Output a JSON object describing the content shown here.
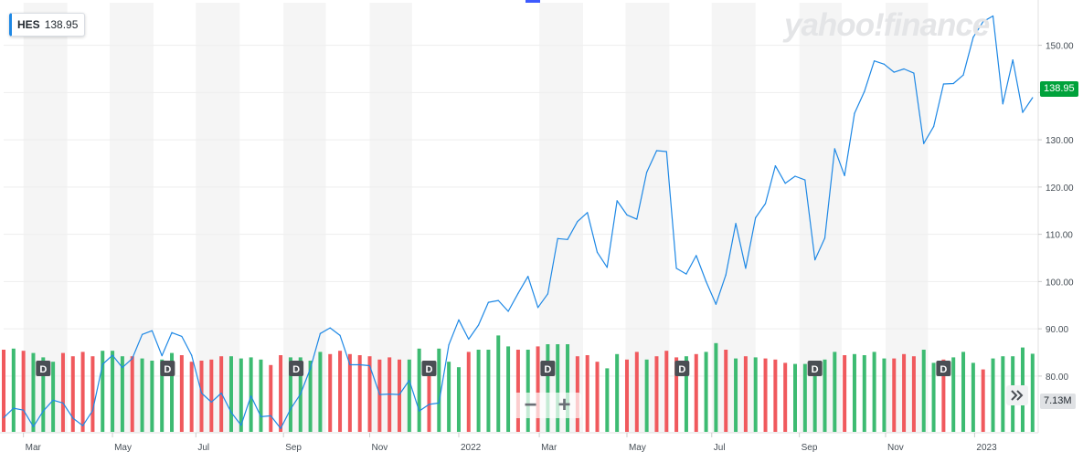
{
  "ticker": {
    "symbol": "HES",
    "price": "138.95"
  },
  "watermark": "yahoo!finance",
  "price_label": "138.95",
  "volume_label": "7.13M",
  "dividend_marker": "D",
  "colors": {
    "line": "#1e88e5",
    "volume_up": "#3dbb72",
    "volume_down": "#f0595d",
    "price_tag": "#00a23b",
    "band": "#f5f5f5",
    "grid": "#eeeeee",
    "dividend_marker": "#4a4e54"
  },
  "icons": {
    "zoom_out": "minus-icon",
    "zoom_in": "plus-icon",
    "scroll": "double-chevron-right-icon"
  },
  "chart_data": {
    "type": "line",
    "title": "",
    "xlabel": "",
    "ylabel": "",
    "ylim": [
      68,
      159
    ],
    "yticks": [
      80,
      90,
      100,
      110,
      120,
      130,
      140,
      150
    ],
    "ytick_labels": [
      "80.00",
      "90.00",
      "100.00",
      "110.00",
      "120.00",
      "130.00",
      "140.00",
      "150.00"
    ],
    "x_range": [
      "2021-02-15",
      "2023-02-17"
    ],
    "x_tick_labels": [
      {
        "label": "Mar",
        "date": "2021-03-01"
      },
      {
        "label": "May",
        "date": "2021-05-03"
      },
      {
        "label": "Jul",
        "date": "2021-07-01"
      },
      {
        "label": "Sep",
        "date": "2021-09-01"
      },
      {
        "label": "Nov",
        "date": "2021-11-01"
      },
      {
        "label": "2022",
        "date": "2022-01-03"
      },
      {
        "label": "Mar",
        "date": "2022-03-01"
      },
      {
        "label": "May",
        "date": "2022-05-02"
      },
      {
        "label": "Jul",
        "date": "2022-07-01"
      },
      {
        "label": "Sep",
        "date": "2022-09-01"
      },
      {
        "label": "Nov",
        "date": "2022-11-01"
      },
      {
        "label": "2023",
        "date": "2023-01-03"
      }
    ],
    "shaded_months": [
      {
        "start": "2021-03-01",
        "end": "2021-04-01"
      },
      {
        "start": "2021-05-01",
        "end": "2021-06-01"
      },
      {
        "start": "2021-07-01",
        "end": "2021-08-01"
      },
      {
        "start": "2021-09-01",
        "end": "2021-10-01"
      },
      {
        "start": "2021-11-01",
        "end": "2021-12-01"
      },
      {
        "start": "2022-03-01",
        "end": "2022-04-01"
      },
      {
        "start": "2022-05-01",
        "end": "2022-06-01"
      },
      {
        "start": "2022-07-01",
        "end": "2022-08-01"
      },
      {
        "start": "2022-09-01",
        "end": "2022-10-01"
      },
      {
        "start": "2022-11-01",
        "end": "2022-12-01"
      }
    ],
    "series": [
      {
        "x": [
          "2021-02-15",
          "2021-02-22",
          "2021-03-01",
          "2021-03-08",
          "2021-03-15",
          "2021-03-22",
          "2021-03-29",
          "2021-04-05",
          "2021-04-12",
          "2021-04-19",
          "2021-04-26",
          "2021-05-03",
          "2021-05-10",
          "2021-05-17",
          "2021-05-24",
          "2021-05-31",
          "2021-06-07",
          "2021-06-14",
          "2021-06-21",
          "2021-06-28",
          "2021-07-05",
          "2021-07-12",
          "2021-07-19",
          "2021-07-26",
          "2021-08-02",
          "2021-08-09",
          "2021-08-16",
          "2021-08-23",
          "2021-08-30",
          "2021-09-06",
          "2021-09-13",
          "2021-09-20",
          "2021-09-27",
          "2021-10-04",
          "2021-10-11",
          "2021-10-18",
          "2021-10-25",
          "2021-11-01",
          "2021-11-08",
          "2021-11-15",
          "2021-11-22",
          "2021-11-29",
          "2021-12-06",
          "2021-12-13",
          "2021-12-20",
          "2021-12-27",
          "2022-01-03",
          "2022-01-10",
          "2022-01-17",
          "2022-01-24",
          "2022-01-31",
          "2022-02-07",
          "2022-02-14",
          "2022-02-21",
          "2022-02-28",
          "2022-03-07",
          "2022-03-14",
          "2022-03-21",
          "2022-03-28",
          "2022-04-04",
          "2022-04-11",
          "2022-04-18",
          "2022-04-25",
          "2022-05-02",
          "2022-05-09",
          "2022-05-16",
          "2022-05-23",
          "2022-05-30",
          "2022-06-06",
          "2022-06-13",
          "2022-06-20",
          "2022-06-27",
          "2022-07-04",
          "2022-07-11",
          "2022-07-18",
          "2022-07-25",
          "2022-08-01",
          "2022-08-08",
          "2022-08-15",
          "2022-08-22",
          "2022-08-29",
          "2022-09-05",
          "2022-09-12",
          "2022-09-19",
          "2022-09-26",
          "2022-10-03",
          "2022-10-10",
          "2022-10-17",
          "2022-10-24",
          "2022-10-31",
          "2022-11-07",
          "2022-11-14",
          "2022-11-21",
          "2022-11-28",
          "2022-12-05",
          "2022-12-12",
          "2022-12-19",
          "2022-12-26",
          "2023-01-02",
          "2023-01-09",
          "2023-01-16",
          "2023-01-23",
          "2023-01-30",
          "2023-02-06",
          "2023-02-13"
        ],
        "close": [
          71.2,
          73.2,
          72.8,
          69.3,
          72.6,
          74.9,
          74.3,
          71.1,
          69.5,
          72.7,
          82.5,
          84.4,
          81.8,
          83.7,
          88.8,
          89.6,
          84.3,
          89.2,
          88.4,
          84.4,
          76.4,
          74.5,
          76.4,
          72.3,
          69.6,
          75.8,
          71.4,
          71.6,
          68.9,
          73.0,
          76.2,
          81.6,
          89.0,
          90.2,
          88.6,
          82.4,
          82.4,
          82.2,
          76.1,
          76.2,
          76.1,
          79.1,
          72.6,
          74.0,
          74.3,
          86.6,
          91.9,
          87.8,
          90.8,
          95.6,
          96.0,
          93.7,
          97.5,
          101.1,
          94.5,
          97.4,
          109.1,
          108.9,
          112.7,
          114.6,
          106.2,
          103.0,
          117.1,
          114.1,
          113.2,
          123.1,
          127.7,
          127.5,
          102.8,
          101.6,
          105.5,
          100.0,
          95.2,
          101.4,
          112.3,
          102.8,
          113.5,
          116.5,
          124.5,
          120.8,
          122.3,
          121.5,
          104.6,
          109.2,
          128.1,
          122.4,
          135.6,
          140.2,
          146.7,
          146.0,
          144.3,
          145.0,
          144.1,
          129.2,
          132.8,
          141.8,
          141.9,
          143.7,
          151.7,
          155.0,
          156.2,
          137.6,
          146.9,
          135.8,
          138.9
        ]
      }
    ],
    "volume": {
      "up_color": "#3dbb72",
      "down_color": "#f0595d",
      "values": [
        7.5,
        7.6,
        7.4,
        7.2,
        6.8,
        6.4,
        7.2,
        6.9,
        7.3,
        6.9,
        7.4,
        7.4,
        6.9,
        6.9,
        6.7,
        6.5,
        6.6,
        7.2,
        7.0,
        6.4,
        6.5,
        6.6,
        6.9,
        6.9,
        6.7,
        6.8,
        6.6,
        6.1,
        7.0,
        6.8,
        6.8,
        6.5,
        7.3,
        7.1,
        7.4,
        7.1,
        7.0,
        6.9,
        6.6,
        6.8,
        6.6,
        6.6,
        7.6,
        6.4,
        7.6,
        6.4,
        5.9,
        7.3,
        7.5,
        7.5,
        8.8,
        7.8,
        7.5,
        7.5,
        7.8,
        8.0,
        8.0,
        8.0,
        6.9,
        7.0,
        6.4,
        5.8,
        7.1,
        6.6,
        7.3,
        6.6,
        6.9,
        7.4,
        6.8,
        6.9,
        7.1,
        7.3,
        8.1,
        7.5,
        6.7,
        6.9,
        6.8,
        6.7,
        6.6,
        6.3,
        6.2,
        6.2,
        5.8,
        6.6,
        7.3,
        7.0,
        7.1,
        7.0,
        7.3,
        6.7,
        6.7,
        7.1,
        6.9,
        7.5,
        6.3,
        6.6,
        6.8,
        7.3,
        6.3,
        5.7,
        6.7,
        6.9,
        6.9,
        7.7,
        7.13
      ],
      "directions": [
        "d",
        "u",
        "d",
        "u",
        "u",
        "u",
        "d",
        "d",
        "d",
        "d",
        "u",
        "u",
        "u",
        "d",
        "u",
        "u",
        "u",
        "u",
        "d",
        "d",
        "d",
        "d",
        "d",
        "u",
        "u",
        "u",
        "u",
        "d",
        "d",
        "u",
        "u",
        "u",
        "u",
        "d",
        "d",
        "d",
        "d",
        "d",
        "d",
        "d",
        "d",
        "u",
        "u",
        "d",
        "u",
        "u",
        "u",
        "d",
        "u",
        "u",
        "u",
        "u",
        "d",
        "u",
        "d",
        "u",
        "u",
        "u",
        "d",
        "d",
        "d",
        "u",
        "u",
        "d",
        "d",
        "u",
        "d",
        "d",
        "d",
        "u",
        "d",
        "u",
        "u",
        "d",
        "u",
        "d",
        "u",
        "d",
        "d",
        "d",
        "u",
        "u",
        "u",
        "u",
        "u",
        "d",
        "u",
        "u",
        "u",
        "u",
        "d",
        "d",
        "d",
        "u",
        "u",
        "d",
        "u",
        "u",
        "u",
        "d",
        "u",
        "u",
        "u",
        "u",
        "u"
      ]
    },
    "dividends": [
      "2021-03-15",
      "2021-06-11",
      "2021-09-10",
      "2021-12-13",
      "2022-03-07",
      "2022-06-10",
      "2022-09-12",
      "2022-12-12"
    ],
    "last_price": 138.95,
    "last_volume": "7.13M",
    "grid": true,
    "legend": "none"
  }
}
